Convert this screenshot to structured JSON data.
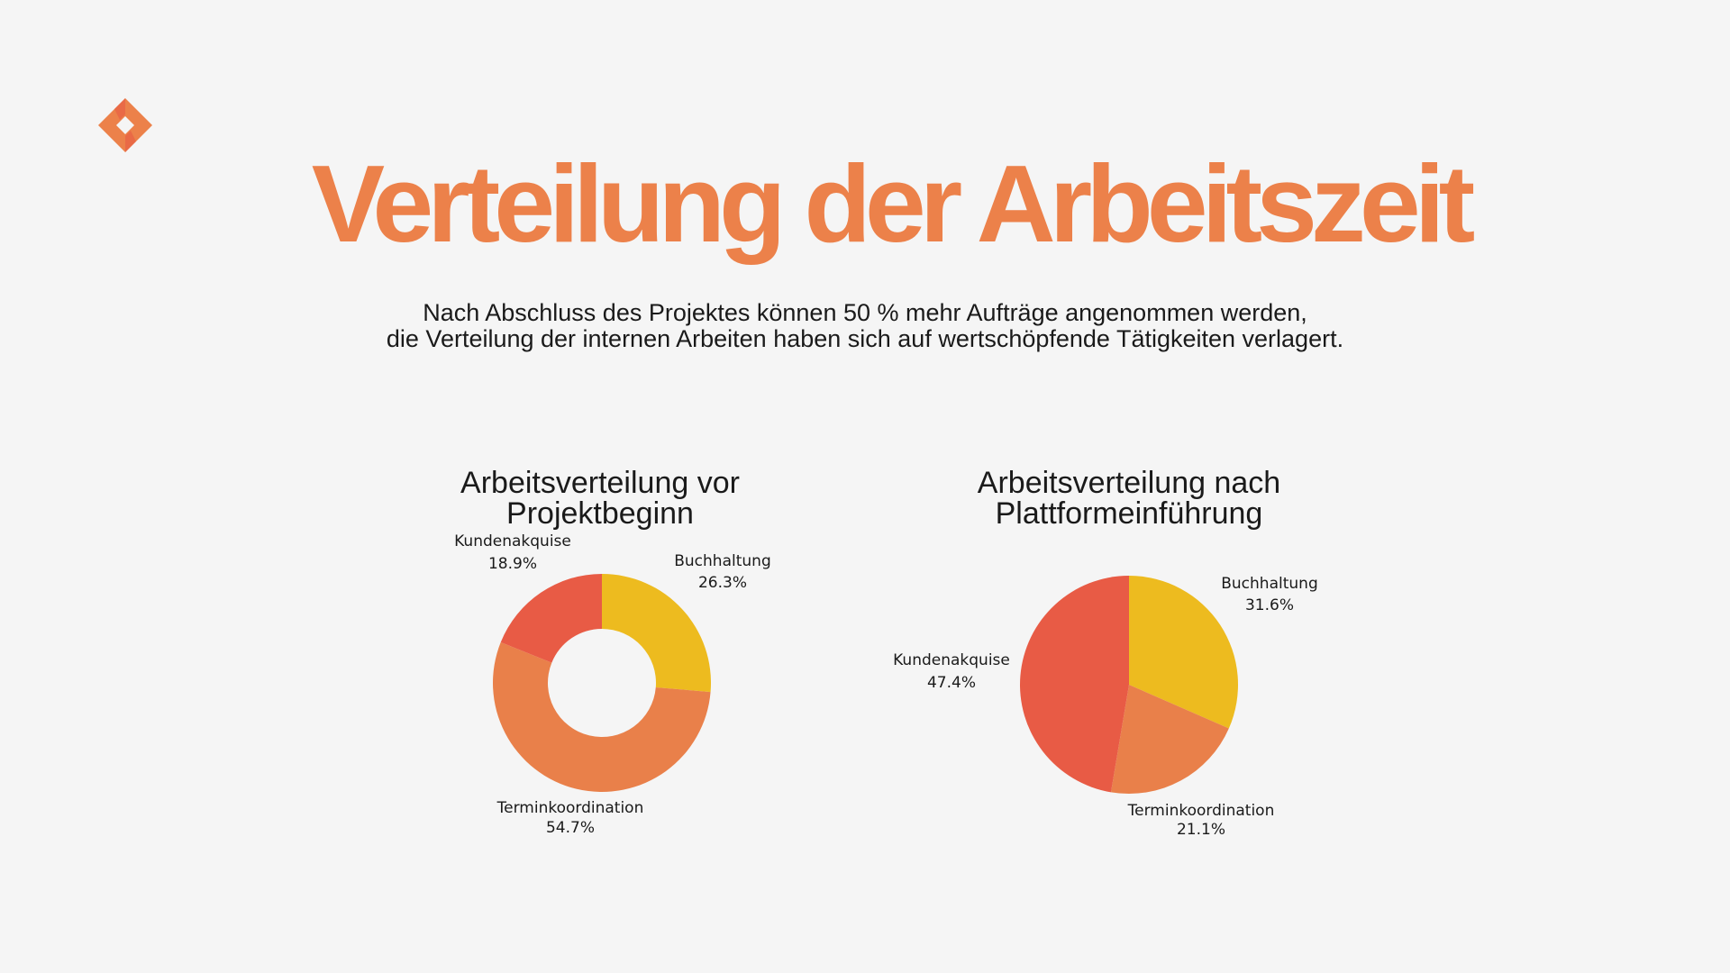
{
  "header": {
    "title": "Verteilung der Arbeitszeit",
    "subtitle_lines": [
      "Nach Abschluss des Projektes können 50 % mehr Aufträge angenommen werden,",
      "die Verteilung der internen Arbeiten haben sich auf wertschöpfende Tätigkeiten verlagert."
    ]
  },
  "logo": {
    "icon": "orange-diamond-logo",
    "color": "#ec814a"
  },
  "chart_data": [
    {
      "type": "pie",
      "variant": "donut",
      "title_lines": [
        "Arbeitsverteilung vor",
        "Projektbeginn"
      ],
      "categories": [
        "Buchhaltung",
        "Terminkoordination",
        "Kundenakquise"
      ],
      "values": [
        26.3,
        54.7,
        18.9
      ],
      "labels": [
        "26.3%",
        "54.7%",
        "18.9%"
      ],
      "colors": [
        "#edbb1f",
        "#e9804a",
        "#e85b45"
      ]
    },
    {
      "type": "pie",
      "title_lines": [
        "Arbeitsverteilung nach",
        "Plattformeinführung"
      ],
      "categories": [
        "Buchhaltung",
        "Terminkoordination",
        "Kundenakquise"
      ],
      "values": [
        31.6,
        21.1,
        47.4
      ],
      "labels": [
        "31.6%",
        "21.1%",
        "47.4%"
      ],
      "colors": [
        "#edbb1f",
        "#e9804a",
        "#e85b45"
      ]
    }
  ]
}
